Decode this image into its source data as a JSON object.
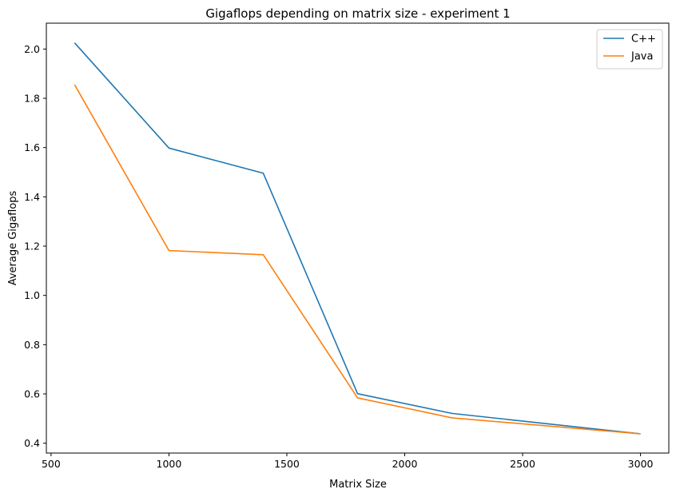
{
  "chart_data": {
    "type": "line",
    "title": "Gigaflops depending on matrix size - experiment 1",
    "xlabel": "Matrix Size",
    "ylabel": "Average Gigaflops",
    "x": [
      600,
      1000,
      1400,
      1800,
      2200,
      3000
    ],
    "series": [
      {
        "name": "C++",
        "color": "#1f77b4",
        "values": [
          2.025,
          1.598,
          1.496,
          0.601,
          0.521,
          0.438
        ]
      },
      {
        "name": "Java",
        "color": "#ff7f0e",
        "values": [
          1.855,
          1.182,
          1.165,
          0.584,
          0.503,
          0.438
        ]
      }
    ],
    "xlim": [
      480,
      3120
    ],
    "ylim": [
      0.36,
      2.105
    ],
    "xticks": [
      500,
      1000,
      1500,
      2000,
      2500,
      3000
    ],
    "yticks": [
      0.4,
      0.6,
      0.8,
      1.0,
      1.2,
      1.4,
      1.6,
      1.8,
      2.0
    ],
    "xtick_labels": [
      "500",
      "1000",
      "1500",
      "2000",
      "2500",
      "3000"
    ],
    "ytick_labels": [
      "0.4",
      "0.6",
      "0.8",
      "1.0",
      "1.2",
      "1.4",
      "1.6",
      "1.8",
      "2.0"
    ],
    "grid": false,
    "legend_position": "top-right"
  }
}
